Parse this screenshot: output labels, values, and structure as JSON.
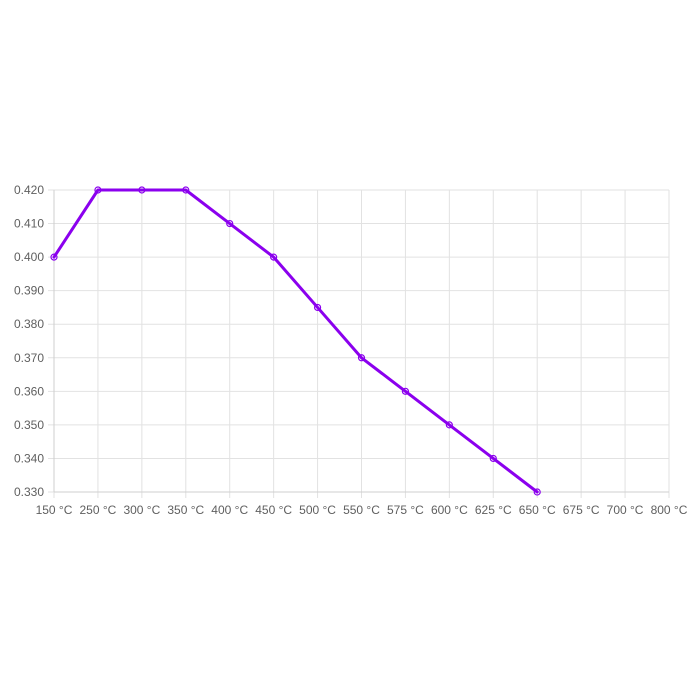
{
  "chart_data": {
    "type": "line",
    "title": "",
    "xlabel": "",
    "ylabel": "",
    "x_tick_labels": [
      "150 °C",
      "250 °C",
      "300 °C",
      "350 °C",
      "400 °C",
      "450 °C",
      "500 °C",
      "550 °C",
      "575 °C",
      "600 °C",
      "625 °C",
      "650 °C",
      "675 °C",
      "700 °C",
      "800 °C"
    ],
    "y_ticks": [
      0.42,
      0.41,
      0.4,
      0.39,
      0.38,
      0.37,
      0.36,
      0.35,
      0.34,
      0.33
    ],
    "y_tick_labels": [
      "0.420",
      "0.410",
      "0.400",
      "0.390",
      "0.380",
      "0.370",
      "0.360",
      "0.350",
      "0.340",
      "0.330"
    ],
    "ylim": [
      0.33,
      0.42
    ],
    "grid": true,
    "legend": "none",
    "series": [
      {
        "color": "#8b00ee",
        "x": [
          "150 °C",
          "250 °C",
          "300 °C",
          "350 °C",
          "400 °C",
          "450 °C",
          "500 °C",
          "550 °C",
          "575 °C",
          "600 °C",
          "625 °C",
          "650 °C"
        ],
        "values": [
          0.4,
          0.42,
          0.42,
          0.42,
          0.41,
          0.4,
          0.385,
          0.37,
          0.36,
          0.35,
          0.34,
          0.33
        ]
      }
    ]
  }
}
